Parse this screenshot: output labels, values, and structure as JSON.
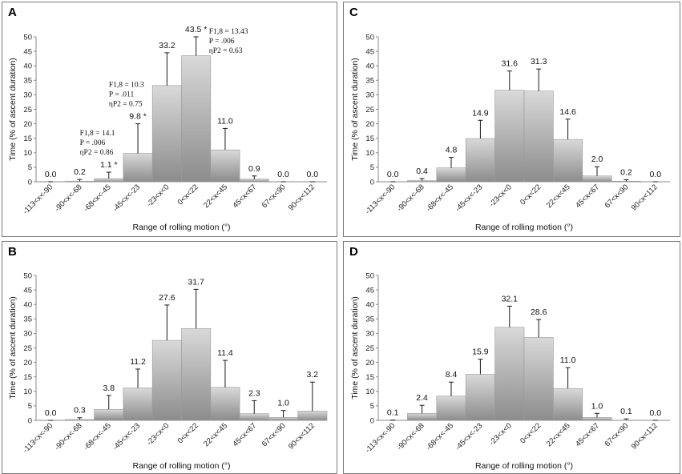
{
  "chart_data": [
    {
      "panel": "A",
      "type": "bar",
      "categories": [
        "-113<x<-90",
        "-90<x<-68",
        "-68<x<-45",
        "-45<x<-23",
        "-23<x<0",
        "0<x<22",
        "22<x<45",
        "45<x<67",
        "67<x<90",
        "90<x<112"
      ],
      "values": [
        0.0,
        0.2,
        1.1,
        9.8,
        33.2,
        43.5,
        11.0,
        0.9,
        0.0,
        0.0
      ],
      "errors": [
        0.0,
        0.6,
        2.2,
        10.2,
        11.3,
        6.5,
        7.4,
        1.1,
        0.0,
        0.0
      ],
      "value_labels": [
        "0.0",
        "0.2",
        "1.1 *",
        "9.8 *",
        "33.2",
        "43.5 *",
        "11.0",
        "0.9",
        "0.0",
        "0.0"
      ],
      "xlabel": "Range of rolling motion (°)",
      "ylabel": "Time (% of ascent duration)",
      "ylim": [
        0,
        50
      ],
      "yticks": [
        0,
        5,
        10,
        15,
        20,
        25,
        30,
        35,
        40,
        45,
        50
      ],
      "annotations": [
        {
          "category_index": 2,
          "lines": [
            "F1,8 = 14.1",
            "P = .006",
            "ηP2 = 0.86"
          ]
        },
        {
          "category_index": 3,
          "lines": [
            "F1,8 = 10.3",
            "P = .011",
            "ηP2 = 0.75"
          ]
        },
        {
          "category_index": 5,
          "lines": [
            "F1,8 = 13.43",
            "P = .006",
            "ηP2 = 0.63"
          ]
        }
      ]
    },
    {
      "panel": "B",
      "type": "bar",
      "categories": [
        "-113<x<-90",
        "-90<x<-68",
        "-68<x<-45",
        "-45<x<-23",
        "-23<x<0",
        "0<x<22",
        "22<x<45",
        "45<x<67",
        "67<x<90",
        "90<x<112"
      ],
      "values": [
        0.0,
        0.3,
        3.8,
        11.2,
        27.6,
        31.7,
        11.4,
        2.3,
        1.0,
        3.2
      ],
      "errors": [
        0.0,
        0.6,
        4.8,
        6.5,
        12.2,
        13.5,
        9.3,
        4.5,
        2.4,
        10.0
      ],
      "value_labels": [
        "0.0",
        "0.3",
        "3.8",
        "11.2",
        "27.6",
        "31.7",
        "11.4",
        "2.3",
        "1.0",
        "3.2"
      ],
      "xlabel": "Range of rolling motion (°)",
      "ylabel": "Time (% of ascent duration)",
      "ylim": [
        0,
        50
      ],
      "yticks": [
        0,
        5,
        10,
        15,
        20,
        25,
        30,
        35,
        40,
        45,
        50
      ],
      "annotations": []
    },
    {
      "panel": "C",
      "type": "bar",
      "categories": [
        "-113<x<-90",
        "-90<x<-68",
        "-68<x<-45",
        "-45<x<-23",
        "-23<x<0",
        "0<x<22",
        "22<x<45",
        "45<x<67",
        "67<x<90",
        "90<x<112"
      ],
      "values": [
        0.0,
        0.4,
        4.8,
        14.9,
        31.6,
        31.3,
        14.6,
        2.0,
        0.2,
        0.0
      ],
      "errors": [
        0.0,
        0.7,
        3.6,
        6.3,
        6.6,
        7.6,
        7.0,
        3.2,
        0.5,
        0.0
      ],
      "value_labels": [
        "0.0",
        "0.4",
        "4.8",
        "14.9",
        "31.6",
        "31.3",
        "14.6",
        "2.0",
        "0.2",
        "0.0"
      ],
      "xlabel": "Range of rolling motion (°)",
      "ylabel": "Time (% of ascent duration)",
      "ylim": [
        0,
        50
      ],
      "yticks": [
        0,
        5,
        10,
        15,
        20,
        25,
        30,
        35,
        40,
        45,
        50
      ],
      "annotations": []
    },
    {
      "panel": "D",
      "type": "bar",
      "categories": [
        "-113<x<-90",
        "-90<x<-68",
        "-68<x<-45",
        "-45<x<-23",
        "-23<x<0",
        "0<x<22",
        "22<x<45",
        "45<x<67",
        "67<x<90",
        "90<x<112"
      ],
      "values": [
        0.1,
        2.4,
        8.4,
        15.9,
        32.1,
        28.6,
        11.0,
        1.0,
        0.1,
        0.0
      ],
      "errors": [
        0.0,
        2.8,
        4.8,
        5.2,
        7.3,
        6.2,
        7.2,
        1.4,
        0.4,
        0.0
      ],
      "value_labels": [
        "0.1",
        "2.4",
        "8.4",
        "15.9",
        "32.1",
        "28.6",
        "11.0",
        "1.0",
        "0.1",
        "0.0"
      ],
      "xlabel": "Range of rolling motion (°)",
      "ylabel": "Time (% of ascent duration)",
      "ylim": [
        0,
        50
      ],
      "yticks": [
        0,
        5,
        10,
        15,
        20,
        25,
        30,
        35,
        40,
        45,
        50
      ],
      "annotations": []
    }
  ],
  "colors": {
    "bar_light": "#d9d9d9",
    "bar_dark": "#8c8c8c",
    "error_bar": "#1a1a1a",
    "panel_border": "#7a7a7a"
  }
}
